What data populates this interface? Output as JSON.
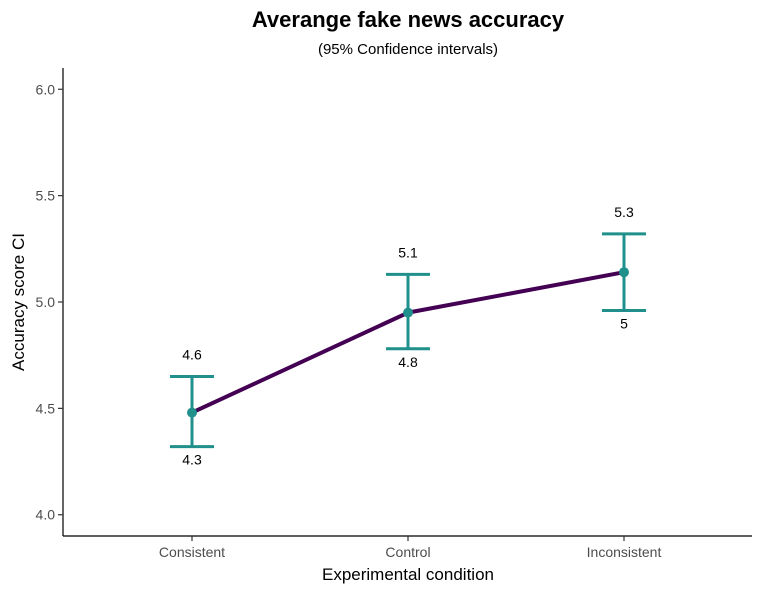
{
  "chart_data": {
    "type": "line",
    "title": "Averange fake news accuracy",
    "subtitle": "(95% Confidence intervals)",
    "xlabel": "Experimental condition",
    "ylabel": "Accuracy score CI",
    "categories": [
      "Consistent",
      "Control",
      "Inconsistent"
    ],
    "series": [
      {
        "values": [
          4.48,
          4.95,
          5.14
        ],
        "ci_lower": [
          4.32,
          4.78,
          4.96
        ],
        "ci_upper": [
          4.65,
          5.13,
          5.32
        ],
        "lower_labels": [
          "4.3",
          "4.8",
          "5"
        ],
        "upper_labels": [
          "4.6",
          "5.1",
          "5.3"
        ]
      }
    ],
    "ylim": [
      3.9,
      6.1
    ],
    "yticks": [
      4.0,
      4.5,
      5.0,
      5.5,
      6.0
    ],
    "ytick_labels": [
      "4.0",
      "4.5",
      "5.0",
      "5.5",
      "6.0"
    ],
    "grid": false,
    "colors": {
      "line": "#440154",
      "errorbar": "#21908c",
      "point": "#21908c",
      "axis": "#000000"
    }
  }
}
